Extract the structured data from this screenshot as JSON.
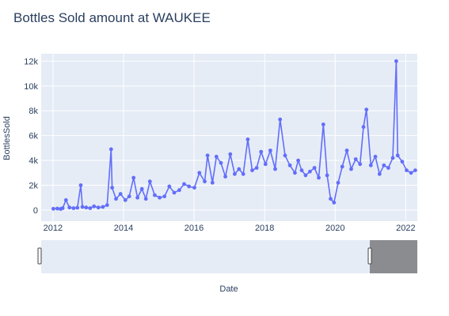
{
  "chart_data": {
    "type": "line",
    "title": "Bottles Sold amount at WAUKEE",
    "xlabel": "Date",
    "ylabel": "BottlesSold",
    "x_ticks": [
      "2012",
      "2014",
      "2016",
      "2018",
      "2020",
      "2022"
    ],
    "y_ticks": [
      {
        "value": 0,
        "label": "0"
      },
      {
        "value": 2000,
        "label": "2k"
      },
      {
        "value": 4000,
        "label": "4k"
      },
      {
        "value": 6000,
        "label": "6k"
      },
      {
        "value": 8000,
        "label": "8k"
      },
      {
        "value": 10000,
        "label": "10k"
      },
      {
        "value": 12000,
        "label": "12k"
      }
    ],
    "xlim": [
      "2011-09-01",
      "2022-05-01"
    ],
    "ylim": [
      -900,
      12600
    ],
    "grid": true,
    "range_slider": true,
    "series": [
      {
        "color": "#636efa",
        "mode": "lines+markers",
        "x": [
          "2012-01-05",
          "2012-02-15",
          "2012-03-20",
          "2012-04-10",
          "2012-05-15",
          "2012-06-20",
          "2012-08-01",
          "2012-09-10",
          "2012-10-15",
          "2012-11-01",
          "2012-12-10",
          "2013-01-20",
          "2013-03-01",
          "2013-04-15",
          "2013-06-01",
          "2013-07-15",
          "2013-08-25",
          "2013-09-05",
          "2013-10-15",
          "2013-12-01",
          "2014-01-20",
          "2014-03-01",
          "2014-04-15",
          "2014-05-25",
          "2014-07-10",
          "2014-08-20",
          "2014-10-01",
          "2014-11-20",
          "2015-01-10",
          "2015-03-01",
          "2015-04-20",
          "2015-06-10",
          "2015-08-01",
          "2015-09-20",
          "2015-11-10",
          "2016-01-05",
          "2016-02-25",
          "2016-04-20",
          "2016-05-20",
          "2016-07-10",
          "2016-08-20",
          "2016-10-05",
          "2016-11-20",
          "2017-01-10",
          "2017-02-25",
          "2017-04-10",
          "2017-05-25",
          "2017-07-10",
          "2017-08-25",
          "2017-10-10",
          "2017-11-25",
          "2018-01-10",
          "2018-03-01",
          "2018-04-20",
          "2018-06-10",
          "2018-08-01",
          "2018-09-20",
          "2018-11-10",
          "2018-12-15",
          "2019-01-20",
          "2019-03-01",
          "2019-04-15",
          "2019-06-01",
          "2019-07-15",
          "2019-09-01",
          "2019-10-10",
          "2019-11-15",
          "2019-12-20",
          "2020-02-01",
          "2020-03-15",
          "2020-05-01",
          "2020-06-15",
          "2020-08-01",
          "2020-09-15",
          "2020-10-20",
          "2020-11-20",
          "2021-01-05",
          "2021-02-20",
          "2021-04-05",
          "2021-05-20",
          "2021-07-05",
          "2021-08-20",
          "2021-09-25",
          "2021-10-10",
          "2021-11-25",
          "2022-01-10",
          "2022-02-25",
          "2022-04-10"
        ],
        "y": [
          100,
          120,
          90,
          150,
          800,
          200,
          150,
          180,
          2000,
          250,
          200,
          150,
          300,
          200,
          250,
          400,
          4900,
          1800,
          900,
          1300,
          800,
          1100,
          2600,
          1000,
          1700,
          900,
          2300,
          1200,
          1000,
          1100,
          1900,
          1400,
          1600,
          2100,
          1900,
          1800,
          3000,
          2300,
          4400,
          2200,
          4300,
          3800,
          2700,
          4500,
          2900,
          3300,
          2900,
          5700,
          3200,
          3400,
          4700,
          3700,
          4800,
          3300,
          7300,
          4400,
          3600,
          3000,
          4000,
          3200,
          2800,
          3100,
          3400,
          2600,
          6900,
          2800,
          900,
          600,
          2200,
          3500,
          4800,
          3300,
          4100,
          3700,
          6700,
          8100,
          3600,
          4300,
          2900,
          3600,
          3400,
          4200,
          12000,
          4400,
          3900,
          3200,
          3000,
          3200
        ]
      }
    ]
  }
}
